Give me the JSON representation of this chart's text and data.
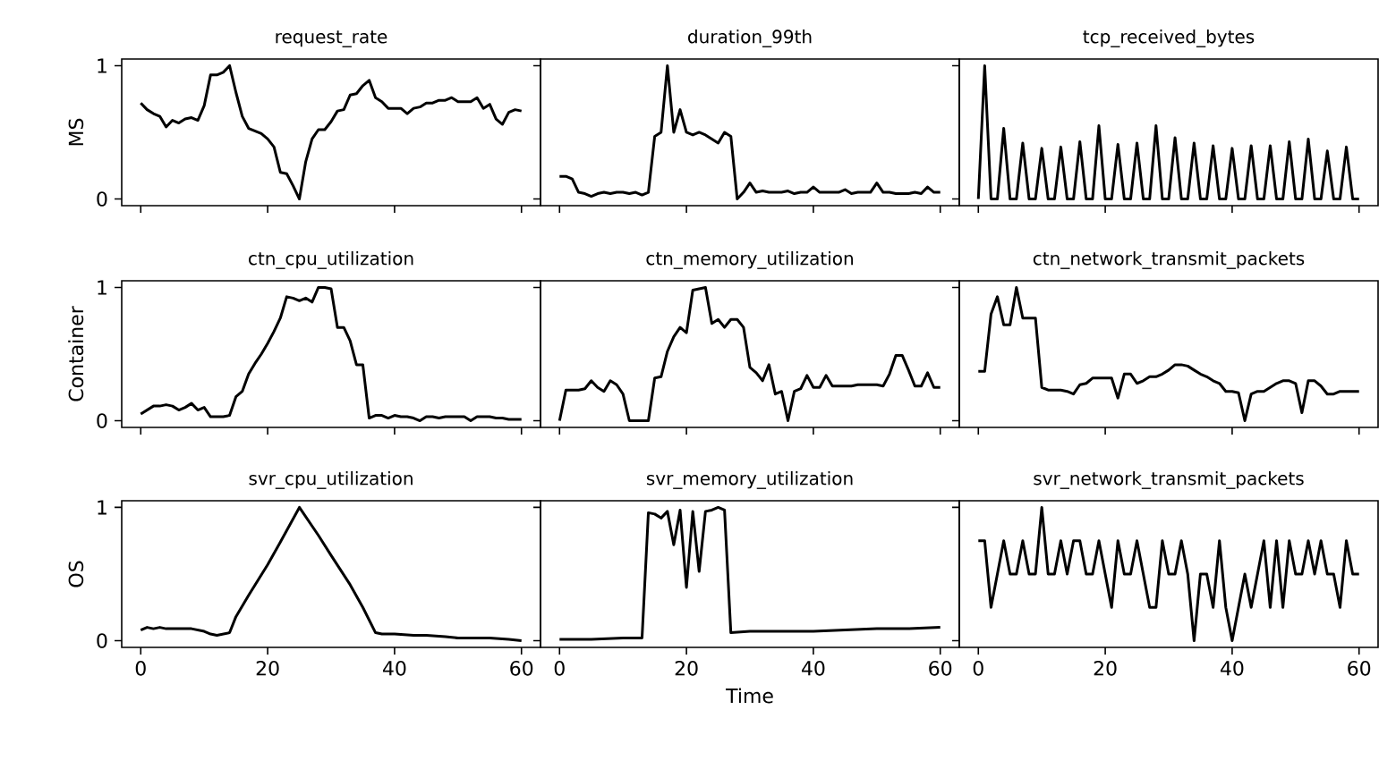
{
  "chart_data": [
    {
      "type": "line",
      "title": "request_rate",
      "ylabel": "MS",
      "color": "#000000",
      "xlim": [
        -3,
        63
      ],
      "ylim": [
        -0.05,
        1.05
      ],
      "xticks": [
        0,
        20,
        40,
        60
      ],
      "yticks": [
        0,
        1
      ],
      "tick_labels": "y",
      "x": [
        0,
        1,
        2,
        3,
        4,
        5,
        6,
        7,
        8,
        9,
        10,
        11,
        12,
        13,
        14,
        15,
        16,
        17,
        18,
        19,
        20,
        21,
        22,
        23,
        24,
        25,
        26,
        27,
        28,
        29,
        30,
        31,
        32,
        33,
        34,
        35,
        36,
        37,
        38,
        39,
        40,
        41,
        42,
        43,
        44,
        45,
        46,
        47,
        48,
        49,
        50,
        51,
        52,
        53,
        54,
        55,
        56,
        57,
        58,
        59,
        60
      ],
      "values": [
        0.72,
        0.67,
        0.64,
        0.62,
        0.54,
        0.59,
        0.57,
        0.6,
        0.61,
        0.59,
        0.7,
        0.93,
        0.93,
        0.95,
        1.0,
        0.8,
        0.62,
        0.53,
        0.51,
        0.49,
        0.45,
        0.39,
        0.2,
        0.19,
        0.1,
        0.0,
        0.28,
        0.45,
        0.52,
        0.52,
        0.58,
        0.66,
        0.67,
        0.78,
        0.79,
        0.85,
        0.89,
        0.76,
        0.73,
        0.68,
        0.68,
        0.68,
        0.64,
        0.68,
        0.69,
        0.72,
        0.72,
        0.74,
        0.74,
        0.76,
        0.73,
        0.73,
        0.73,
        0.76,
        0.68,
        0.71,
        0.6,
        0.56,
        0.65,
        0.67,
        0.66
      ]
    },
    {
      "type": "line",
      "title": "duration_99th",
      "color": "#000000",
      "xlim": [
        -3,
        63
      ],
      "ylim": [
        -0.05,
        1.05
      ],
      "xticks": [
        0,
        20,
        40,
        60
      ],
      "yticks": [
        0,
        1
      ],
      "tick_labels": false,
      "x": [
        0,
        1,
        2,
        3,
        4,
        5,
        6,
        7,
        8,
        9,
        10,
        11,
        12,
        13,
        14,
        15,
        16,
        17,
        18,
        19,
        20,
        21,
        22,
        23,
        24,
        25,
        26,
        27,
        28,
        29,
        30,
        31,
        32,
        33,
        34,
        35,
        36,
        37,
        38,
        39,
        40,
        41,
        42,
        43,
        44,
        45,
        46,
        47,
        48,
        49,
        50,
        51,
        52,
        53,
        54,
        55,
        56,
        57,
        58,
        59,
        60
      ],
      "values": [
        0.17,
        0.17,
        0.15,
        0.05,
        0.04,
        0.02,
        0.04,
        0.05,
        0.04,
        0.05,
        0.05,
        0.04,
        0.05,
        0.03,
        0.05,
        0.47,
        0.5,
        1.0,
        0.5,
        0.67,
        0.5,
        0.48,
        0.5,
        0.48,
        0.45,
        0.42,
        0.5,
        0.47,
        0.0,
        0.05,
        0.12,
        0.05,
        0.06,
        0.05,
        0.05,
        0.05,
        0.06,
        0.04,
        0.05,
        0.05,
        0.09,
        0.05,
        0.05,
        0.05,
        0.05,
        0.07,
        0.04,
        0.05,
        0.05,
        0.05,
        0.12,
        0.05,
        0.05,
        0.04,
        0.04,
        0.04,
        0.05,
        0.04,
        0.09,
        0.05,
        0.05
      ]
    },
    {
      "type": "line",
      "title": "tcp_received_bytes",
      "color": "#000000",
      "xlim": [
        -3,
        63
      ],
      "ylim": [
        -0.05,
        1.05
      ],
      "xticks": [
        0,
        20,
        40,
        60
      ],
      "yticks": [
        0,
        1
      ],
      "tick_labels": false,
      "x": [
        0,
        1,
        2,
        3,
        4,
        5,
        6,
        7,
        8,
        9,
        10,
        11,
        12,
        13,
        14,
        15,
        16,
        17,
        18,
        19,
        20,
        21,
        22,
        23,
        24,
        25,
        26,
        27,
        28,
        29,
        30,
        31,
        32,
        33,
        34,
        35,
        36,
        37,
        38,
        39,
        40,
        41,
        42,
        43,
        44,
        45,
        46,
        47,
        48,
        49,
        50,
        51,
        52,
        53,
        54,
        55,
        56,
        57,
        58,
        59,
        60
      ],
      "values": [
        0,
        1.0,
        0,
        0,
        0.53,
        0,
        0,
        0.42,
        0,
        0,
        0.38,
        0,
        0,
        0.39,
        0,
        0,
        0.43,
        0,
        0,
        0.55,
        0,
        0,
        0.41,
        0,
        0,
        0.42,
        0,
        0,
        0.55,
        0,
        0,
        0.46,
        0,
        0,
        0.42,
        0,
        0,
        0.4,
        0,
        0,
        0.38,
        0,
        0,
        0.4,
        0,
        0,
        0.4,
        0,
        0,
        0.43,
        0,
        0,
        0.45,
        0,
        0,
        0.36,
        0,
        0,
        0.39,
        0,
        0
      ]
    },
    {
      "type": "line",
      "title": "ctn_cpu_utilization",
      "ylabel": "Container",
      "color": "#000000",
      "xlim": [
        -3,
        63
      ],
      "ylim": [
        -0.05,
        1.05
      ],
      "xticks": [
        0,
        20,
        40,
        60
      ],
      "yticks": [
        0,
        1
      ],
      "tick_labels": "y",
      "x": [
        0,
        1,
        2,
        3,
        4,
        5,
        6,
        7,
        8,
        9,
        10,
        11,
        12,
        13,
        14,
        15,
        16,
        17,
        18,
        19,
        20,
        21,
        22,
        23,
        24,
        25,
        26,
        27,
        28,
        29,
        30,
        31,
        32,
        33,
        34,
        35,
        36,
        37,
        38,
        39,
        40,
        41,
        42,
        43,
        44,
        45,
        46,
        47,
        48,
        49,
        50,
        51,
        52,
        53,
        54,
        55,
        56,
        57,
        58,
        59,
        60
      ],
      "values": [
        0.05,
        0.08,
        0.11,
        0.11,
        0.12,
        0.11,
        0.08,
        0.1,
        0.13,
        0.08,
        0.1,
        0.03,
        0.03,
        0.03,
        0.04,
        0.18,
        0.22,
        0.35,
        0.43,
        0.5,
        0.58,
        0.67,
        0.77,
        0.93,
        0.92,
        0.9,
        0.92,
        0.89,
        1.0,
        1.0,
        0.99,
        0.7,
        0.7,
        0.6,
        0.42,
        0.42,
        0.02,
        0.04,
        0.04,
        0.02,
        0.04,
        0.03,
        0.03,
        0.02,
        0.0,
        0.03,
        0.03,
        0.02,
        0.03,
        0.03,
        0.03,
        0.03,
        0.0,
        0.03,
        0.03,
        0.03,
        0.02,
        0.02,
        0.01,
        0.01,
        0.01
      ]
    },
    {
      "type": "line",
      "title": "ctn_memory_utilization",
      "color": "#000000",
      "xlim": [
        -3,
        63
      ],
      "ylim": [
        -0.05,
        1.05
      ],
      "xticks": [
        0,
        20,
        40,
        60
      ],
      "yticks": [
        0,
        1
      ],
      "tick_labels": false,
      "x": [
        0,
        1,
        2,
        3,
        4,
        5,
        6,
        7,
        8,
        9,
        10,
        11,
        12,
        13,
        14,
        15,
        16,
        17,
        18,
        19,
        20,
        21,
        22,
        23,
        24,
        25,
        26,
        27,
        28,
        29,
        30,
        31,
        32,
        33,
        34,
        35,
        36,
        37,
        38,
        39,
        40,
        41,
        42,
        43,
        44,
        45,
        46,
        47,
        48,
        49,
        50,
        51,
        52,
        53,
        54,
        55,
        56,
        57,
        58,
        59,
        60
      ],
      "values": [
        0.0,
        0.23,
        0.23,
        0.23,
        0.24,
        0.3,
        0.25,
        0.22,
        0.3,
        0.27,
        0.2,
        0.0,
        0.0,
        0.0,
        0.0,
        0.32,
        0.33,
        0.52,
        0.63,
        0.7,
        0.66,
        0.98,
        0.99,
        1.0,
        0.73,
        0.76,
        0.7,
        0.76,
        0.76,
        0.7,
        0.4,
        0.36,
        0.3,
        0.42,
        0.2,
        0.22,
        0.0,
        0.22,
        0.24,
        0.34,
        0.25,
        0.25,
        0.34,
        0.26,
        0.26,
        0.26,
        0.26,
        0.27,
        0.27,
        0.27,
        0.27,
        0.26,
        0.35,
        0.49,
        0.49,
        0.38,
        0.26,
        0.26,
        0.36,
        0.25,
        0.25
      ]
    },
    {
      "type": "line",
      "title": "ctn_network_transmit_packets",
      "color": "#000000",
      "xlim": [
        -3,
        63
      ],
      "ylim": [
        -0.05,
        1.05
      ],
      "xticks": [
        0,
        20,
        40,
        60
      ],
      "yticks": [
        0,
        1
      ],
      "tick_labels": false,
      "x": [
        0,
        1,
        2,
        3,
        4,
        5,
        6,
        7,
        8,
        9,
        10,
        11,
        12,
        13,
        14,
        15,
        16,
        17,
        18,
        19,
        20,
        21,
        22,
        23,
        24,
        25,
        26,
        27,
        28,
        29,
        30,
        31,
        32,
        33,
        34,
        35,
        36,
        37,
        38,
        39,
        40,
        41,
        42,
        43,
        44,
        45,
        46,
        47,
        48,
        49,
        50,
        51,
        52,
        53,
        54,
        55,
        56,
        57,
        58,
        59,
        60
      ],
      "values": [
        0.37,
        0.37,
        0.8,
        0.93,
        0.72,
        0.72,
        1.0,
        0.77,
        0.77,
        0.77,
        0.25,
        0.23,
        0.23,
        0.23,
        0.22,
        0.2,
        0.27,
        0.28,
        0.32,
        0.32,
        0.32,
        0.32,
        0.17,
        0.35,
        0.35,
        0.28,
        0.3,
        0.33,
        0.33,
        0.35,
        0.38,
        0.42,
        0.42,
        0.41,
        0.38,
        0.35,
        0.33,
        0.3,
        0.28,
        0.22,
        0.22,
        0.21,
        0.0,
        0.2,
        0.22,
        0.22,
        0.25,
        0.28,
        0.3,
        0.3,
        0.28,
        0.06,
        0.3,
        0.3,
        0.26,
        0.2,
        0.2,
        0.22,
        0.22,
        0.22,
        0.22
      ]
    },
    {
      "type": "line",
      "title": "svr_cpu_utilization",
      "ylabel": "OS",
      "color": "#000000",
      "xlim": [
        -3,
        63
      ],
      "ylim": [
        -0.05,
        1.05
      ],
      "xticks": [
        0,
        20,
        40,
        60
      ],
      "yticks": [
        0,
        1
      ],
      "x": [
        0,
        1,
        2,
        3,
        4,
        6,
        8,
        10,
        11,
        12,
        13,
        14,
        15,
        17,
        20,
        22,
        25,
        28,
        30,
        33,
        35,
        37,
        38,
        40,
        43,
        45,
        48,
        50,
        53,
        55,
        58,
        60
      ],
      "values": [
        0.08,
        0.1,
        0.09,
        0.1,
        0.09,
        0.09,
        0.09,
        0.07,
        0.05,
        0.04,
        0.05,
        0.06,
        0.18,
        0.34,
        0.57,
        0.74,
        1.0,
        0.79,
        0.64,
        0.42,
        0.25,
        0.06,
        0.05,
        0.05,
        0.04,
        0.04,
        0.03,
        0.02,
        0.02,
        0.02,
        0.01,
        0.0
      ]
    },
    {
      "type": "line",
      "title": "svr_memory_utilization",
      "xlabel": "Time",
      "color": "#000000",
      "xlim": [
        -3,
        63
      ],
      "ylim": [
        -0.05,
        1.05
      ],
      "xticks": [
        0,
        20,
        40,
        60
      ],
      "yticks": [
        0,
        1
      ],
      "tick_labels": "x",
      "x": [
        0,
        5,
        10,
        13,
        14,
        15,
        16,
        17,
        18,
        19,
        20,
        21,
        22,
        23,
        24,
        25,
        26,
        27,
        30,
        35,
        40,
        45,
        50,
        55,
        60
      ],
      "values": [
        0.01,
        0.01,
        0.02,
        0.02,
        0.96,
        0.95,
        0.92,
        0.97,
        0.72,
        0.98,
        0.4,
        0.97,
        0.52,
        0.97,
        0.98,
        1.0,
        0.98,
        0.06,
        0.07,
        0.07,
        0.07,
        0.08,
        0.09,
        0.09,
        0.1
      ]
    },
    {
      "type": "line",
      "title": "svr_network_transmit_packets",
      "color": "#000000",
      "xlim": [
        -3,
        63
      ],
      "ylim": [
        -0.05,
        1.05
      ],
      "xticks": [
        0,
        20,
        40,
        60
      ],
      "yticks": [
        0,
        1
      ],
      "tick_labels": "x",
      "x": [
        0,
        1,
        2,
        3,
        4,
        5,
        6,
        7,
        8,
        9,
        10,
        11,
        12,
        13,
        14,
        15,
        16,
        17,
        18,
        19,
        20,
        21,
        22,
        23,
        24,
        25,
        26,
        27,
        28,
        29,
        30,
        31,
        32,
        33,
        34,
        35,
        36,
        37,
        38,
        39,
        40,
        41,
        42,
        43,
        44,
        45,
        46,
        47,
        48,
        49,
        50,
        51,
        52,
        53,
        54,
        55,
        56,
        57,
        58,
        59,
        60
      ],
      "values": [
        0.75,
        0.75,
        0.25,
        0.5,
        0.75,
        0.5,
        0.5,
        0.75,
        0.5,
        0.5,
        1.0,
        0.5,
        0.5,
        0.75,
        0.5,
        0.75,
        0.75,
        0.5,
        0.5,
        0.75,
        0.5,
        0.25,
        0.75,
        0.5,
        0.5,
        0.75,
        0.5,
        0.25,
        0.25,
        0.75,
        0.5,
        0.5,
        0.75,
        0.5,
        0.0,
        0.5,
        0.5,
        0.25,
        0.75,
        0.25,
        0.0,
        0.25,
        0.5,
        0.25,
        0.5,
        0.75,
        0.25,
        0.75,
        0.25,
        0.75,
        0.5,
        0.5,
        0.75,
        0.5,
        0.75,
        0.5,
        0.5,
        0.25,
        0.75,
        0.5,
        0.5
      ]
    }
  ]
}
